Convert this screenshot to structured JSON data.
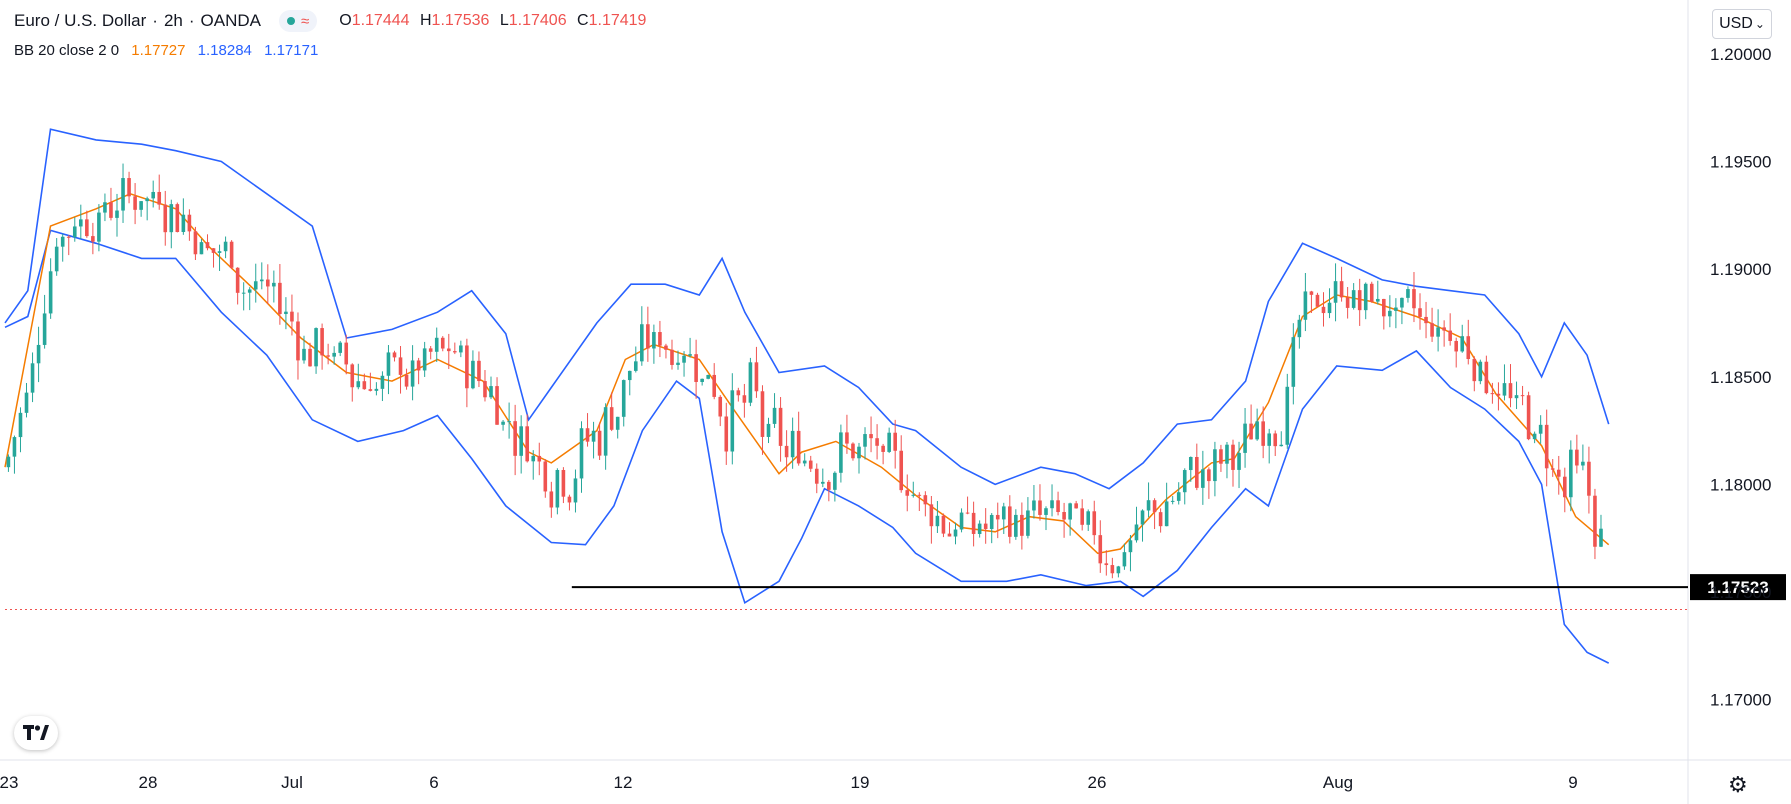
{
  "header": {
    "symbol": "Euro / U.S. Dollar",
    "sep1": "·",
    "interval": "2h",
    "sep2": "·",
    "broker": "OANDA",
    "pill_glyph": "≈",
    "ohlc": {
      "o_label": "O",
      "o_value": "1.17444",
      "h_label": "H",
      "h_value": "1.17536",
      "l_label": "L",
      "l_value": "1.17406",
      "c_label": "C",
      "c_value": "1.17419"
    }
  },
  "indicator": {
    "label": "BB 20 close 2 0",
    "middle": "1.17727",
    "upper": "1.18284",
    "lower": "1.17171"
  },
  "currency_button": "USD",
  "currency_arrow": "⌄",
  "settings_icon": "⚙",
  "colors": {
    "up": "#26a69a",
    "down": "#ef5350",
    "band": "#2962ff",
    "basis": "#f57c00",
    "support": "#000000",
    "last_price": "#ef5350"
  },
  "chart_data": {
    "type": "candlestick",
    "title": "Euro / U.S. Dollar · 2h · OANDA",
    "x_tick_labels": [
      "23",
      "28",
      "Jul",
      "6",
      "12",
      "19",
      "26",
      "Aug",
      "9"
    ],
    "y_tick_labels": [
      "1.17000",
      "1.17500",
      "1.18000",
      "1.18500",
      "1.19000",
      "1.19500",
      "1.20000"
    ],
    "y_ticks": [
      1.17,
      1.175,
      1.18,
      1.185,
      1.19,
      1.195,
      1.2
    ],
    "ylim": [
      1.1672,
      1.2025
    ],
    "xlim": [
      0,
      1411
    ],
    "support_level": {
      "label": "1.17523",
      "value": 1.17523,
      "x_start": 498
    },
    "last_price": 1.17419,
    "basis_points": [
      [
        0,
        1.1808
      ],
      [
        40,
        1.192
      ],
      [
        80,
        1.1928
      ],
      [
        110,
        1.1935
      ],
      [
        150,
        1.1928
      ],
      [
        180,
        1.191
      ],
      [
        220,
        1.189
      ],
      [
        260,
        1.1868
      ],
      [
        300,
        1.1852
      ],
      [
        340,
        1.1848
      ],
      [
        380,
        1.1858
      ],
      [
        420,
        1.1848
      ],
      [
        460,
        1.1815
      ],
      [
        480,
        1.181
      ],
      [
        520,
        1.1825
      ],
      [
        545,
        1.1858
      ],
      [
        570,
        1.1865
      ],
      [
        610,
        1.1858
      ],
      [
        640,
        1.1835
      ],
      [
        680,
        1.1805
      ],
      [
        700,
        1.1815
      ],
      [
        730,
        1.182
      ],
      [
        770,
        1.1808
      ],
      [
        800,
        1.1795
      ],
      [
        840,
        1.178
      ],
      [
        870,
        1.1778
      ],
      [
        900,
        1.1785
      ],
      [
        930,
        1.1783
      ],
      [
        960,
        1.1768
      ],
      [
        980,
        1.177
      ],
      [
        1020,
        1.1793
      ],
      [
        1060,
        1.181
      ],
      [
        1080,
        1.1812
      ],
      [
        1110,
        1.1838
      ],
      [
        1140,
        1.1878
      ],
      [
        1170,
        1.1888
      ],
      [
        1200,
        1.1885
      ],
      [
        1240,
        1.1878
      ],
      [
        1280,
        1.1868
      ],
      [
        1310,
        1.1842
      ],
      [
        1350,
        1.1818
      ],
      [
        1380,
        1.1785
      ],
      [
        1409,
        1.1772
      ]
    ],
    "upper_band_points": [
      [
        0,
        1.1875
      ],
      [
        20,
        1.189
      ],
      [
        40,
        1.1965
      ],
      [
        80,
        1.196
      ],
      [
        120,
        1.1958
      ],
      [
        150,
        1.1955
      ],
      [
        190,
        1.195
      ],
      [
        230,
        1.1935
      ],
      [
        270,
        1.192
      ],
      [
        300,
        1.1868
      ],
      [
        340,
        1.1872
      ],
      [
        380,
        1.188
      ],
      [
        410,
        1.189
      ],
      [
        440,
        1.187
      ],
      [
        460,
        1.183
      ],
      [
        480,
        1.1845
      ],
      [
        520,
        1.1875
      ],
      [
        550,
        1.1893
      ],
      [
        580,
        1.1893
      ],
      [
        610,
        1.1888
      ],
      [
        630,
        1.1905
      ],
      [
        650,
        1.188
      ],
      [
        680,
        1.1852
      ],
      [
        720,
        1.1855
      ],
      [
        750,
        1.1845
      ],
      [
        780,
        1.1828
      ],
      [
        800,
        1.1825
      ],
      [
        840,
        1.1808
      ],
      [
        870,
        1.18
      ],
      [
        910,
        1.1808
      ],
      [
        940,
        1.1805
      ],
      [
        970,
        1.1798
      ],
      [
        1000,
        1.181
      ],
      [
        1030,
        1.1828
      ],
      [
        1060,
        1.183
      ],
      [
        1090,
        1.1848
      ],
      [
        1110,
        1.1885
      ],
      [
        1140,
        1.1912
      ],
      [
        1170,
        1.1905
      ],
      [
        1210,
        1.1895
      ],
      [
        1240,
        1.1892
      ],
      [
        1270,
        1.189
      ],
      [
        1300,
        1.1888
      ],
      [
        1330,
        1.187
      ],
      [
        1350,
        1.185
      ],
      [
        1370,
        1.1875
      ],
      [
        1390,
        1.186
      ],
      [
        1409,
        1.1828
      ]
    ],
    "lower_band_points": [
      [
        0,
        1.1873
      ],
      [
        20,
        1.1878
      ],
      [
        40,
        1.1918
      ],
      [
        80,
        1.1912
      ],
      [
        120,
        1.1905
      ],
      [
        150,
        1.1905
      ],
      [
        190,
        1.188
      ],
      [
        230,
        1.186
      ],
      [
        270,
        1.183
      ],
      [
        310,
        1.182
      ],
      [
        350,
        1.1825
      ],
      [
        380,
        1.1832
      ],
      [
        410,
        1.1812
      ],
      [
        440,
        1.179
      ],
      [
        480,
        1.1773
      ],
      [
        510,
        1.1772
      ],
      [
        535,
        1.179
      ],
      [
        560,
        1.1825
      ],
      [
        590,
        1.1848
      ],
      [
        610,
        1.184
      ],
      [
        630,
        1.1778
      ],
      [
        650,
        1.1745
      ],
      [
        680,
        1.1755
      ],
      [
        700,
        1.1775
      ],
      [
        720,
        1.1798
      ],
      [
        750,
        1.179
      ],
      [
        780,
        1.178
      ],
      [
        800,
        1.1768
      ],
      [
        840,
        1.1755
      ],
      [
        880,
        1.1755
      ],
      [
        910,
        1.1758
      ],
      [
        950,
        1.1753
      ],
      [
        980,
        1.1755
      ],
      [
        1000,
        1.1748
      ],
      [
        1030,
        1.176
      ],
      [
        1060,
        1.178
      ],
      [
        1090,
        1.1798
      ],
      [
        1110,
        1.179
      ],
      [
        1140,
        1.1835
      ],
      [
        1170,
        1.1855
      ],
      [
        1210,
        1.1853
      ],
      [
        1240,
        1.1862
      ],
      [
        1270,
        1.1845
      ],
      [
        1300,
        1.1835
      ],
      [
        1330,
        1.182
      ],
      [
        1350,
        1.18
      ],
      [
        1370,
        1.1735
      ],
      [
        1390,
        1.1722
      ],
      [
        1409,
        1.1717
      ]
    ]
  }
}
